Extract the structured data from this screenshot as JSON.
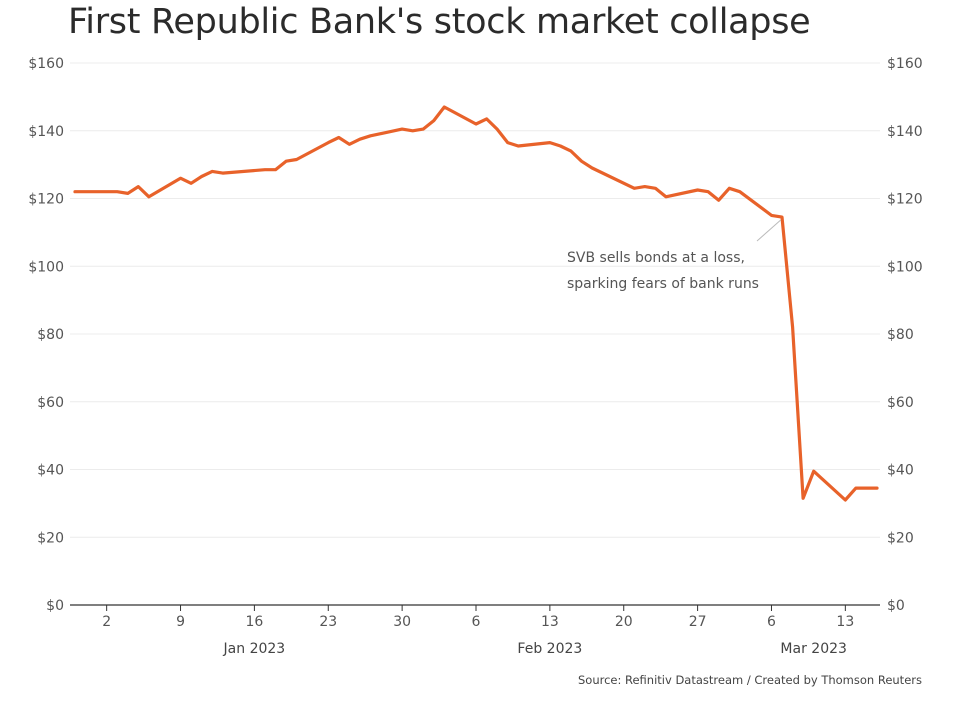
{
  "chart_data": {
    "type": "line",
    "title": "First Republic Bank's stock market collapse",
    "xlabel": "",
    "ylabel": "",
    "ylim": [
      0,
      160
    ],
    "y_ticks": [
      "$0",
      "$20",
      "$40",
      "$60",
      "$80",
      "$100",
      "$120",
      "$140",
      "$160"
    ],
    "y_tick_values": [
      0,
      20,
      40,
      60,
      80,
      100,
      120,
      140,
      160
    ],
    "grid": "horizontal, light",
    "x_tick_labels": [
      "2",
      "9",
      "16",
      "23",
      "30",
      "6",
      "13",
      "20",
      "27",
      "6",
      "13"
    ],
    "x_tick_dates": [
      "2023-01-02",
      "2023-01-09",
      "2023-01-16",
      "2023-01-23",
      "2023-01-30",
      "2023-02-06",
      "2023-02-13",
      "2023-02-20",
      "2023-02-27",
      "2023-03-06",
      "2023-03-13"
    ],
    "period_labels": [
      {
        "label": "Jan 2023",
        "date": "2023-01-16"
      },
      {
        "label": "Feb 2023",
        "date": "2023-02-13"
      },
      {
        "label": "Mar 2023",
        "date": "2023-03-10"
      }
    ],
    "series": [
      {
        "color": "#e8622a",
        "x": [
          "2022-12-30",
          "2023-01-03",
          "2023-01-04",
          "2023-01-05",
          "2023-01-06",
          "2023-01-09",
          "2023-01-10",
          "2023-01-11",
          "2023-01-12",
          "2023-01-13",
          "2023-01-17",
          "2023-01-18",
          "2023-01-19",
          "2023-01-20",
          "2023-01-23",
          "2023-01-24",
          "2023-01-25",
          "2023-01-26",
          "2023-01-27",
          "2023-01-30",
          "2023-01-31",
          "2023-02-01",
          "2023-02-02",
          "2023-02-03",
          "2023-02-06",
          "2023-02-07",
          "2023-02-08",
          "2023-02-09",
          "2023-02-10",
          "2023-02-13",
          "2023-02-14",
          "2023-02-15",
          "2023-02-16",
          "2023-02-17",
          "2023-02-21",
          "2023-02-22",
          "2023-02-23",
          "2023-02-24",
          "2023-02-27",
          "2023-02-28",
          "2023-03-01",
          "2023-03-02",
          "2023-03-03",
          "2023-03-06",
          "2023-03-07",
          "2023-03-08",
          "2023-03-09",
          "2023-03-10",
          "2023-03-13",
          "2023-03-14",
          "2023-03-15",
          "2023-03-16"
        ],
        "values": [
          122,
          122,
          121.5,
          123.5,
          120.5,
          126,
          124.5,
          126.5,
          128,
          127.5,
          128.5,
          128.5,
          131,
          131.5,
          136.5,
          138,
          136,
          137.5,
          138.5,
          140.5,
          140,
          140.5,
          143,
          147,
          142,
          143.5,
          140.5,
          136.5,
          135.5,
          136.5,
          135.5,
          134,
          131,
          129,
          123,
          123.5,
          123,
          120.5,
          122.5,
          122,
          119.5,
          123,
          122,
          115,
          114.5,
          82,
          31.5,
          39.5,
          31,
          34.5,
          34.5,
          34.5
        ]
      }
    ],
    "annotations": [
      {
        "text_lines": [
          "SVB sells bonds at a loss,",
          "sparking fears of bank runs"
        ],
        "date": "2023-03-08",
        "value": 114.5
      }
    ],
    "source": "Source: Refinitiv Datastream / Created by Thomson Reuters"
  }
}
